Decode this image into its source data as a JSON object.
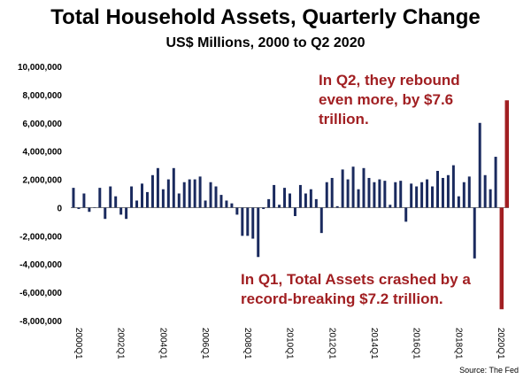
{
  "chart_data": {
    "type": "bar",
    "title": "Total Household Assets, Quarterly Change",
    "subtitle": "US$ Millions, 2000 to Q2 2020",
    "ylim": [
      -8000000,
      10000000
    ],
    "yticks": [
      "10,000,000",
      "8,000,000",
      "6,000,000",
      "4,000,000",
      "2,000,000",
      "0",
      "-2,000,000",
      "-4,000,000",
      "-6,000,000",
      "-8,000,000"
    ],
    "ytick_values": [
      10000000,
      8000000,
      6000000,
      4000000,
      2000000,
      0,
      -2000000,
      -4000000,
      -6000000,
      -8000000
    ],
    "xticks": [
      "2000Q1",
      "2002Q1",
      "2004Q1",
      "2006Q1",
      "2008Q1",
      "2010Q1",
      "2012Q1",
      "2014Q1",
      "2016Q1",
      "2018Q1",
      "2020Q1"
    ],
    "categories_start": "2000Q1",
    "values": [
      1400000,
      -100000,
      1000000,
      -300000,
      0,
      1400000,
      -800000,
      1500000,
      800000,
      -500000,
      -800000,
      1500000,
      500000,
      1700000,
      1100000,
      2300000,
      2800000,
      1300000,
      2000000,
      2800000,
      1000000,
      1800000,
      2000000,
      2000000,
      2200000,
      500000,
      1800000,
      1500000,
      900000,
      500000,
      300000,
      -500000,
      -2000000,
      -2000000,
      -2200000,
      -3500000,
      -100000,
      600000,
      1600000,
      200000,
      1400000,
      1000000,
      -600000,
      1600000,
      1000000,
      1300000,
      600000,
      -1800000,
      1800000,
      2100000,
      100000,
      2700000,
      2000000,
      2900000,
      1300000,
      2800000,
      2100000,
      1800000,
      2000000,
      1900000,
      200000,
      1800000,
      1900000,
      -1000000,
      1700000,
      1500000,
      1800000,
      2000000,
      1500000,
      2600000,
      2100000,
      2300000,
      3000000,
      800000,
      1800000,
      2200000,
      -3600000,
      6000000,
      2300000,
      1300000,
      3600000,
      -7200000,
      7600000
    ],
    "highlight_color": "#a11f22",
    "bar_color": "#1a2a5e",
    "grid": false
  },
  "annotations": {
    "q2_text": "In Q2, they rebound even more, by $7.6 trillion.",
    "q1_text": "In Q1, Total Assets crashed by a record-breaking $7.2 trillion."
  },
  "source": "Source: The Fed"
}
